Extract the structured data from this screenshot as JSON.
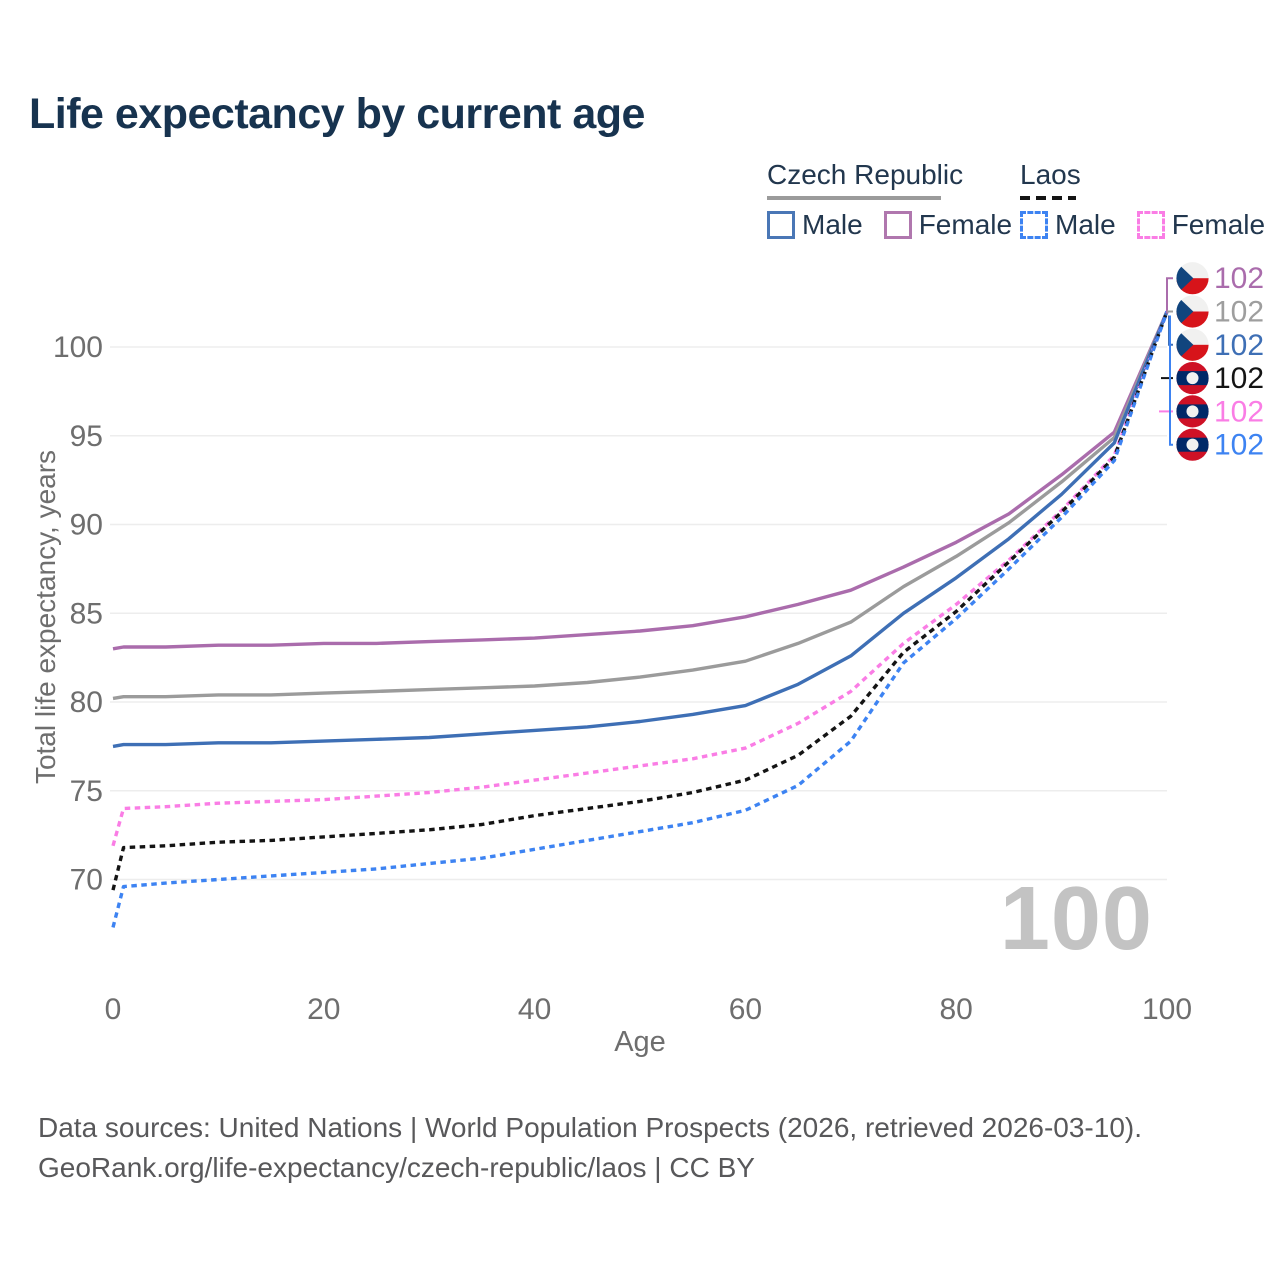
{
  "title": "Life expectancy by current age",
  "legend": {
    "groups": [
      {
        "title": "Czech Republic",
        "line_style": "solid",
        "line_color": "#9b9b9b",
        "underline_width": 174,
        "items": [
          {
            "label": "Male",
            "color": "#4a77b6",
            "dash": false
          },
          {
            "label": "Female",
            "color": "#b077ae",
            "dash": false
          }
        ]
      },
      {
        "title": "Laos",
        "line_style": "dashed",
        "line_color": "#141414",
        "underline_width": 56,
        "items": [
          {
            "label": "Male",
            "color": "#3d83f2",
            "dash": true
          },
          {
            "label": "Female",
            "color": "#fa7de5",
            "dash": true
          }
        ]
      }
    ]
  },
  "chart_data": {
    "type": "line",
    "title": "Life expectancy by current age",
    "xlabel": "Age",
    "ylabel": "Total life expectancy, years",
    "xlim": [
      0,
      100
    ],
    "ylim": [
      66,
      104
    ],
    "xticks": [
      0,
      20,
      40,
      60,
      80,
      100
    ],
    "yticks": [
      70,
      75,
      80,
      85,
      90,
      95,
      100
    ],
    "grid": "horizontal",
    "legend_position": "top-right",
    "x": [
      0,
      1,
      5,
      10,
      15,
      20,
      25,
      30,
      35,
      40,
      45,
      50,
      55,
      60,
      65,
      70,
      75,
      80,
      85,
      90,
      95,
      100
    ],
    "series": [
      {
        "name": "Czech Republic — Female",
        "country": "Czech Republic",
        "sex": "Female",
        "color": "#aa6cac",
        "dash": false,
        "values": [
          83.0,
          83.1,
          83.1,
          83.2,
          83.2,
          83.3,
          83.3,
          83.4,
          83.5,
          83.6,
          83.8,
          84.0,
          84.3,
          84.8,
          85.5,
          86.3,
          87.6,
          89.0,
          90.6,
          92.8,
          95.2,
          102
        ]
      },
      {
        "name": "Czech Republic — Both sexes",
        "country": "Czech Republic",
        "sex": "Both",
        "color": "#9b9b9b",
        "dash": false,
        "values": [
          80.2,
          80.3,
          80.3,
          80.4,
          80.4,
          80.5,
          80.6,
          80.7,
          80.8,
          80.9,
          81.1,
          81.4,
          81.8,
          82.3,
          83.3,
          84.5,
          86.5,
          88.2,
          90.1,
          92.4,
          94.9,
          102
        ]
      },
      {
        "name": "Czech Republic — Male",
        "country": "Czech Republic",
        "sex": "Male",
        "color": "#3e6fb5",
        "dash": false,
        "values": [
          77.5,
          77.6,
          77.6,
          77.7,
          77.7,
          77.8,
          77.9,
          78.0,
          78.2,
          78.4,
          78.6,
          78.9,
          79.3,
          79.8,
          81.0,
          82.6,
          85.0,
          87.0,
          89.2,
          91.7,
          94.6,
          102
        ]
      },
      {
        "name": "Laos — Female",
        "country": "Laos",
        "sex": "Female",
        "color": "#fa7de5",
        "dash": true,
        "values": [
          71.9,
          74.0,
          74.1,
          74.3,
          74.4,
          74.5,
          74.7,
          74.9,
          75.2,
          75.6,
          76.0,
          76.4,
          76.8,
          77.4,
          78.8,
          80.6,
          83.3,
          85.5,
          88.0,
          90.8,
          93.9,
          102
        ]
      },
      {
        "name": "Laos — Both sexes",
        "country": "Laos",
        "sex": "Both",
        "color": "#141414",
        "dash": true,
        "values": [
          69.4,
          71.8,
          71.9,
          72.1,
          72.2,
          72.4,
          72.6,
          72.8,
          73.1,
          73.6,
          74.0,
          74.4,
          74.9,
          75.6,
          77.0,
          79.2,
          82.8,
          85.1,
          87.9,
          90.7,
          93.8,
          102
        ]
      },
      {
        "name": "Laos — Male",
        "country": "Laos",
        "sex": "Male",
        "color": "#3d83f2",
        "dash": true,
        "values": [
          67.3,
          69.6,
          69.8,
          70.0,
          70.2,
          70.4,
          70.6,
          70.9,
          71.2,
          71.7,
          72.2,
          72.7,
          73.2,
          73.9,
          75.3,
          77.8,
          82.2,
          84.7,
          87.5,
          90.4,
          93.6,
          102
        ]
      }
    ],
    "end_labels": [
      {
        "value": "102",
        "flag": "czech",
        "color": "#aa6cac",
        "series": "Czech Republic — Female"
      },
      {
        "value": "102",
        "flag": "czech",
        "color": "#9e9e9e",
        "series": "Czech Republic — Both sexes"
      },
      {
        "value": "102",
        "flag": "czech",
        "color": "#3e6fb5",
        "series": "Czech Republic — Male"
      },
      {
        "value": "102",
        "flag": "laos",
        "color": "#141414",
        "series": "Laos — Both sexes"
      },
      {
        "value": "102",
        "flag": "laos",
        "color": "#fa7de5",
        "series": "Laos — Female"
      },
      {
        "value": "102",
        "flag": "laos",
        "color": "#3d83f2",
        "series": "Laos — Male"
      }
    ],
    "watermark": "100"
  },
  "footer": {
    "line1": "Data sources: United Nations | World Population Prospects (2026, retrieved 2026-03-10).",
    "line2": "GeoRank.org/life-expectancy/czech-republic/laos | CC BY"
  }
}
